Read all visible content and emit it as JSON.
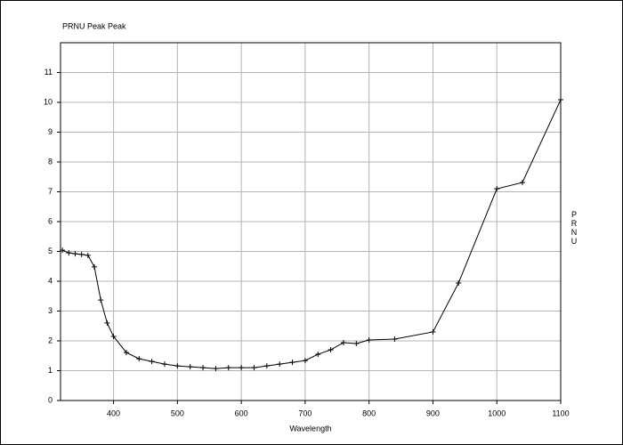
{
  "chart_data": {
    "type": "line",
    "title": "PRNU Peak Peak",
    "xlabel": "Wavelength",
    "ylabel": "PRNU",
    "x": [
      320,
      330,
      340,
      350,
      360,
      370,
      380,
      390,
      400,
      420,
      440,
      460,
      480,
      500,
      520,
      540,
      560,
      580,
      600,
      620,
      640,
      660,
      680,
      700,
      720,
      740,
      760,
      780,
      800,
      840,
      900,
      940,
      1000,
      1040,
      1100
    ],
    "values": [
      5.04,
      4.95,
      4.92,
      4.9,
      4.87,
      4.48,
      3.37,
      2.6,
      2.15,
      1.61,
      1.4,
      1.31,
      1.22,
      1.16,
      1.13,
      1.1,
      1.07,
      1.1,
      1.1,
      1.1,
      1.16,
      1.22,
      1.28,
      1.34,
      1.55,
      1.7,
      1.94,
      1.91,
      2.03,
      2.06,
      2.3,
      3.94,
      7.1,
      7.31,
      10.09
    ],
    "color": "#000000",
    "xlim": [
      317,
      1100
    ],
    "xticks": [
      400,
      500,
      600,
      700,
      800,
      900,
      1000,
      1100
    ],
    "ylim": [
      0,
      12
    ],
    "yticks": [
      0,
      1,
      2,
      3,
      4,
      5,
      6,
      7,
      8,
      9,
      10,
      11
    ],
    "grid": true
  }
}
